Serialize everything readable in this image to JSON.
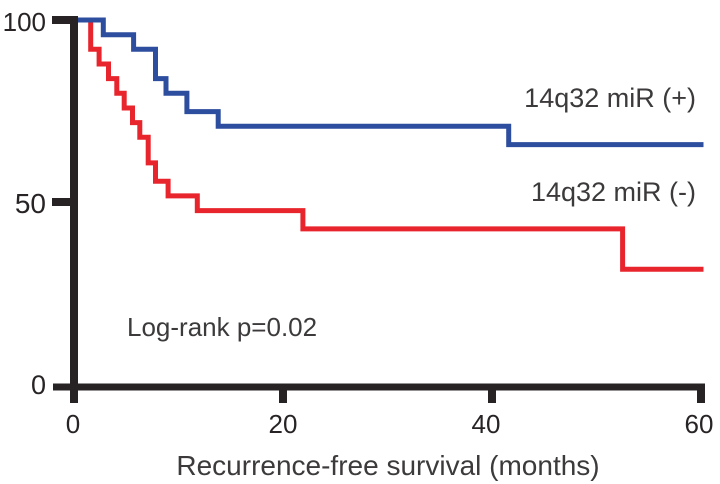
{
  "figure": {
    "background": "#ffffff",
    "axis_color": "#272324",
    "tick_text_color": "#282425",
    "label_text_color": "#3c3a3b"
  },
  "chart_data": {
    "type": "line",
    "subtype": "kaplan-meier-step",
    "title": "",
    "xlabel": "Recurrence-free survival (months)",
    "ylabel": "",
    "xlim": [
      0,
      60
    ],
    "ylim": [
      0,
      100
    ],
    "x_ticks": [
      0,
      20,
      40,
      60
    ],
    "y_ticks": [
      0,
      50,
      100
    ],
    "x_tick_labels": [
      "0",
      "20",
      "40",
      "60"
    ],
    "y_tick_labels": [
      "0",
      "50",
      "100"
    ],
    "grid": false,
    "legend_position": "inline-right",
    "annotation": "Log-rank p=0.02",
    "series": [
      {
        "name": "14q32 miR (-)",
        "color": "#e8252d",
        "steps_comment": "pairs of [month_of_step, percent_after_step]; first pair is start point",
        "steps": [
          [
            0,
            100
          ],
          [
            1.6,
            92
          ],
          [
            2.4,
            88
          ],
          [
            3.3,
            84
          ],
          [
            4.1,
            80
          ],
          [
            4.8,
            76
          ],
          [
            5.6,
            72
          ],
          [
            6.3,
            68
          ],
          [
            7.1,
            61
          ],
          [
            7.8,
            56
          ],
          [
            9.0,
            52
          ],
          [
            11.8,
            48
          ],
          [
            21.9,
            43
          ],
          [
            52.5,
            32
          ],
          [
            60,
            32
          ]
        ]
      },
      {
        "name": "14q32 miR (+)",
        "color": "#2d4d9e",
        "steps": [
          [
            0,
            100
          ],
          [
            2.8,
            96
          ],
          [
            5.7,
            92
          ],
          [
            7.8,
            84
          ],
          [
            8.8,
            80
          ],
          [
            10.8,
            75
          ],
          [
            13.8,
            71
          ],
          [
            41.6,
            66
          ],
          [
            60,
            66
          ]
        ]
      }
    ]
  }
}
